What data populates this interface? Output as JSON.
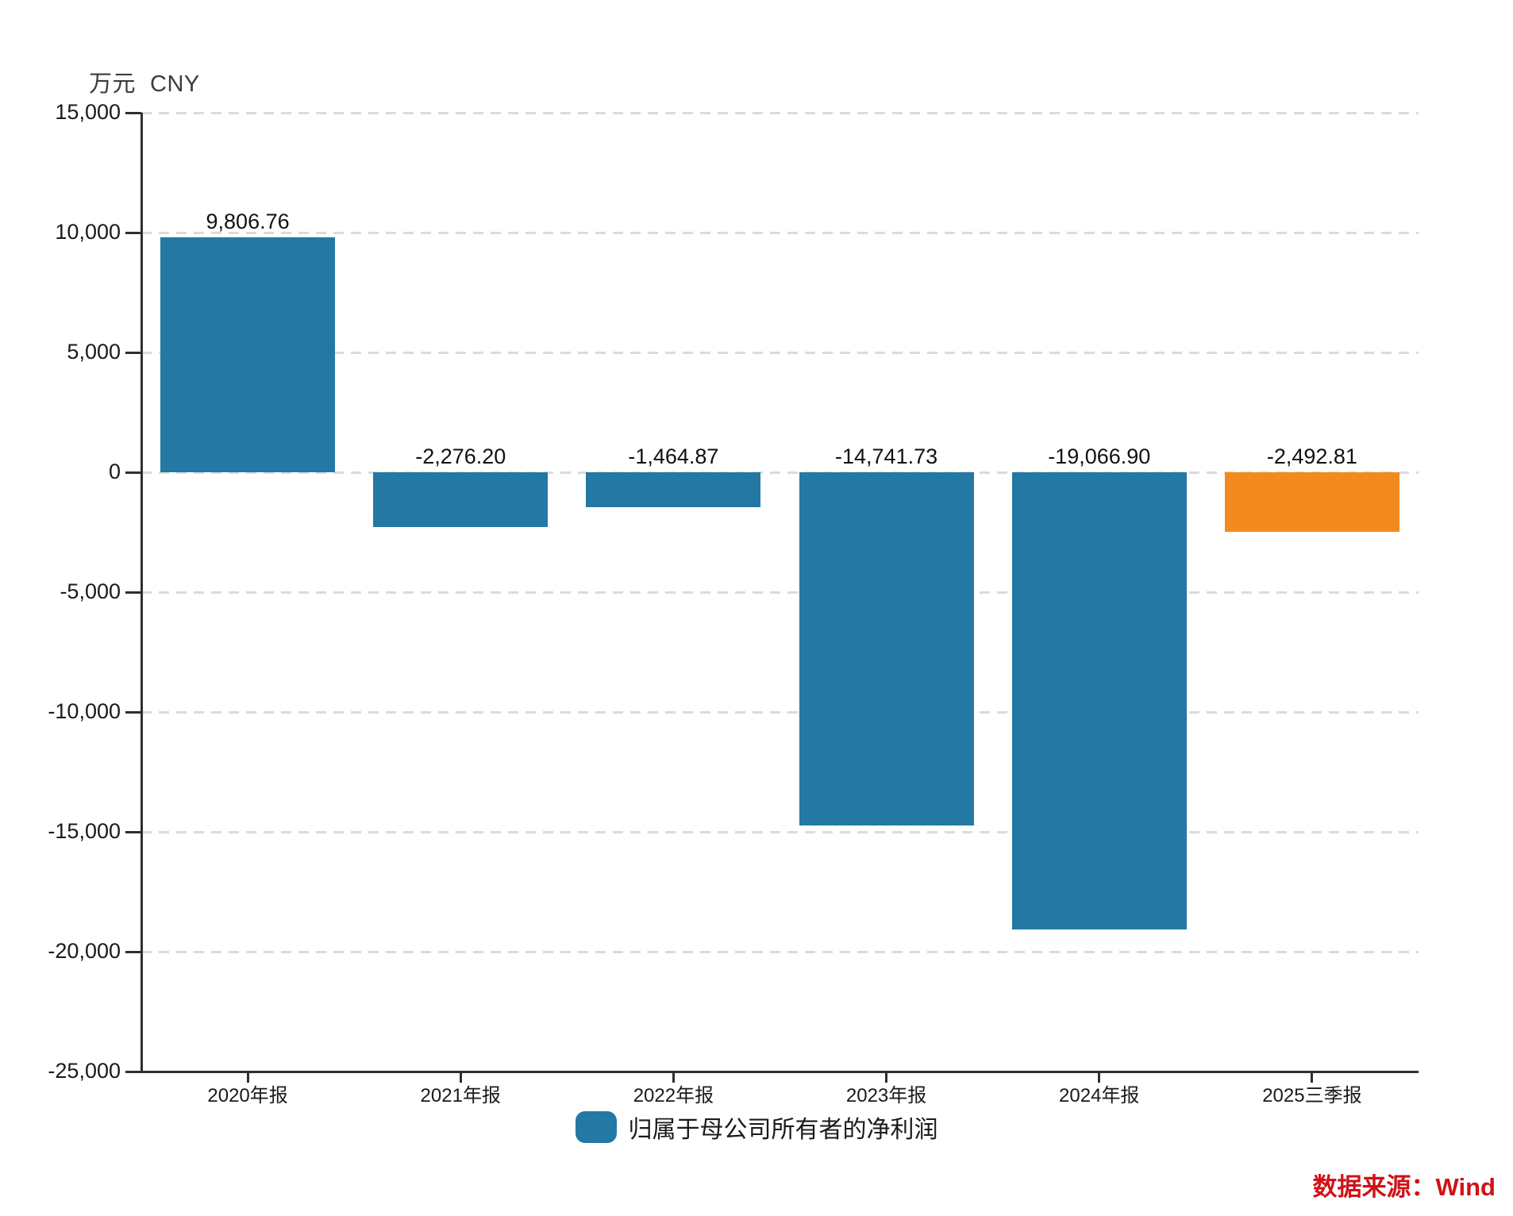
{
  "axis_title": {
    "unit": "万元",
    "currency": "CNY"
  },
  "legend": {
    "label": "归属于母公司所有者的净利润"
  },
  "source_note": "数据来源：Wind",
  "colors": {
    "bar": "#2478A4",
    "highlight_bar": "#F28A1F",
    "grid": "#DBDBDB",
    "axis": "#2F2F2F",
    "source_text": "#D01218"
  },
  "chart_data": {
    "type": "bar",
    "title": "",
    "ylabel": "万元 CNY",
    "categories": [
      "2020年报",
      "2021年报",
      "2022年报",
      "2023年报",
      "2024年报",
      "2025三季报"
    ],
    "values": [
      9806.76,
      -2276.2,
      -1464.87,
      -14741.73,
      -19066.9,
      -2492.81
    ],
    "value_labels": [
      "9,806.76",
      "-2,276.20",
      "-1,464.87",
      "-14,741.73",
      "-19,066.90",
      "-2,492.81"
    ],
    "series_name": "归属于母公司所有者的净利润",
    "bar_color_keys": [
      "bar",
      "bar",
      "bar",
      "bar",
      "bar",
      "highlight_bar"
    ],
    "ylim": [
      -25000,
      15000
    ],
    "ytick_step": 5000,
    "ytick_values": [
      15000,
      10000,
      5000,
      0,
      -5000,
      -10000,
      -15000,
      -20000,
      -25000
    ],
    "ytick_labels": [
      "15,000",
      "10,000",
      "5,000",
      "0",
      "-5,000",
      "-10,000",
      "-15,000",
      "-20,000",
      "-25,000"
    ],
    "grid": true,
    "legend_position": "bottom"
  }
}
